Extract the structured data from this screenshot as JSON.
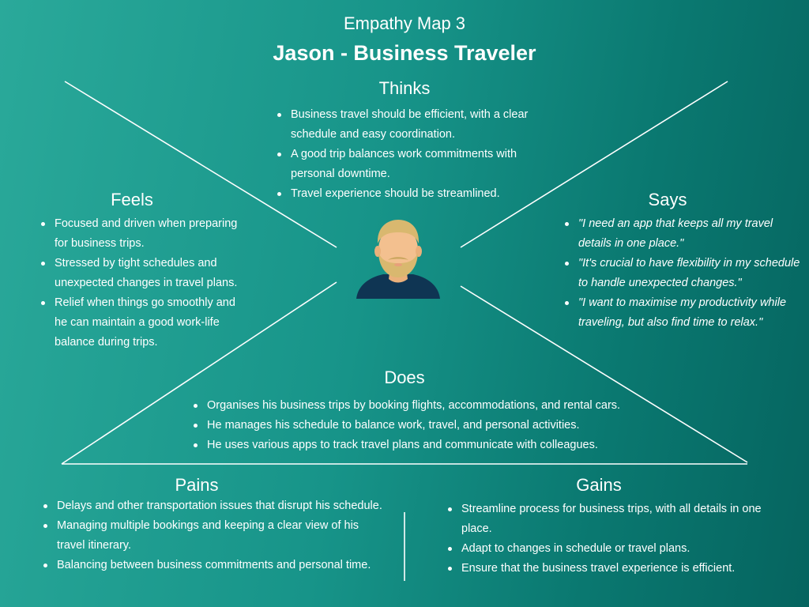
{
  "header": {
    "subtitle": "Empathy Map 3",
    "title": "Jason - Business Traveler"
  },
  "thinks": {
    "heading": "Thinks",
    "items": [
      "Business travel should be efficient, with a clear schedule and easy coordination.",
      "A good trip balances work commitments with personal downtime.",
      "Travel experience should be streamlined."
    ]
  },
  "feels": {
    "heading": "Feels",
    "items": [
      "Focused and driven when preparing for business trips.",
      "Stressed by tight schedules and unexpected changes in travel plans.",
      "Relief when things go smoothly and he can maintain a good work-life balance during trips."
    ]
  },
  "says": {
    "heading": "Says",
    "items": [
      "\"I need an app that keeps all my travel details in one place.\"",
      "\"It's crucial to have flexibility in my schedule to handle unexpected changes.\"",
      "\"I want to maximise my productivity while traveling, but also find time to relax.\""
    ]
  },
  "does": {
    "heading": "Does",
    "items": [
      "Organises his business trips by booking flights, accommodations, and rental cars.",
      "He manages his schedule to balance work, travel, and personal activities.",
      "He uses various apps to track travel plans and communicate with colleagues."
    ]
  },
  "pains": {
    "heading": "Pains",
    "items": [
      "Delays and other transportation issues that disrupt his schedule.",
      "Managing multiple bookings and keeping a clear view of his travel itinerary.",
      "Balancing between business commitments and personal time."
    ]
  },
  "gains": {
    "heading": "Gains",
    "items": [
      "Streamline process for business trips, with all details in one place.",
      "Adapt to changes in schedule or travel plans.",
      "Ensure that the business travel experience is efficient."
    ]
  },
  "persona": {
    "icon": "bearded-man-avatar-icon"
  },
  "colors": {
    "background_start": "#2aa99a",
    "background_end": "#05645f",
    "text": "#ffffff",
    "skin": "#f3c08f",
    "hair": "#d9b86f",
    "shirt": "#0f3553"
  }
}
